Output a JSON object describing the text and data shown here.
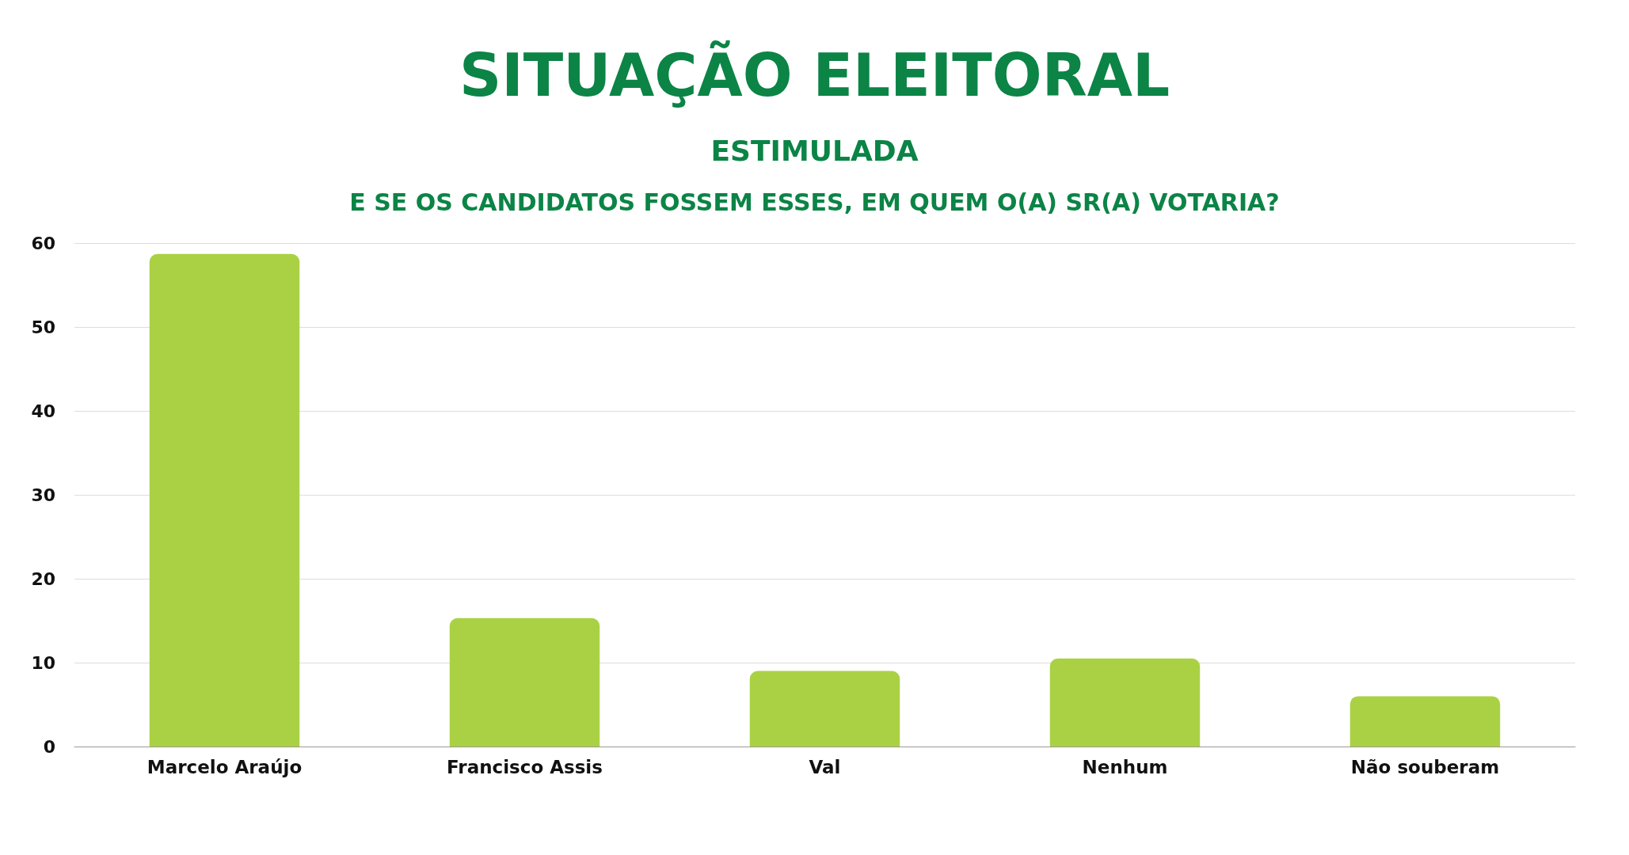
{
  "chart_data": {
    "type": "bar",
    "title": "SITUAÇÃO ELEITORAL",
    "subtitle": "ESTIMULADA",
    "annotations": [
      "E SE OS CANDIDATOS FOSSEM ESSES, EM QUEM O(A) SR(A) VOTARIA?"
    ],
    "categories": [
      "Marcelo Araújo",
      "Francisco Assis",
      "Val",
      "Nenhum",
      "Não souberam"
    ],
    "values": [
      58.7,
      15.3,
      9,
      10.5,
      6
    ],
    "color": "#aad144",
    "ylim": [
      0,
      60
    ],
    "yticks": [
      0,
      10,
      20,
      30,
      40,
      50,
      60
    ],
    "grid": "y"
  }
}
